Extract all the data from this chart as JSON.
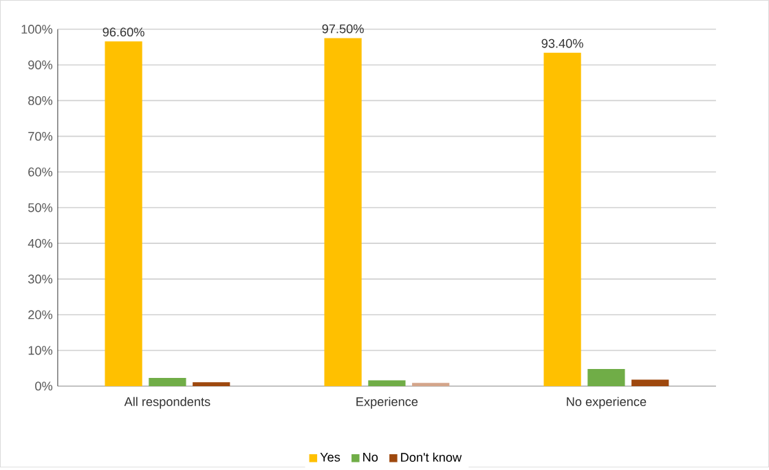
{
  "chart_data": {
    "type": "bar",
    "categories": [
      "All respondents",
      "Experience",
      "No experience"
    ],
    "series": [
      {
        "name": "Yes",
        "color": "#ffc000",
        "values": [
          96.6,
          97.5,
          93.4
        ],
        "value_labels": [
          "96.60%",
          "97.50%",
          "93.40%"
        ]
      },
      {
        "name": "No",
        "color": "#70ad47",
        "values": [
          2.3,
          1.6,
          4.8
        ]
      },
      {
        "name": "Don't know",
        "color": "#9e480e",
        "colors": [
          "#9e480e",
          "#d4a58a",
          "#9e480e"
        ],
        "values": [
          1.1,
          0.9,
          1.8
        ]
      }
    ],
    "ylim": [
      0,
      100
    ],
    "yticks": [
      {
        "value": 0,
        "label": "0%"
      },
      {
        "value": 10,
        "label": "10%"
      },
      {
        "value": 20,
        "label": "20%"
      },
      {
        "value": 30,
        "label": "30%"
      },
      {
        "value": 40,
        "label": "40%"
      },
      {
        "value": 50,
        "label": "50%"
      },
      {
        "value": 60,
        "label": "60%"
      },
      {
        "value": 70,
        "label": "70%"
      },
      {
        "value": 80,
        "label": "80%"
      },
      {
        "value": 90,
        "label": "90%"
      },
      {
        "value": 100,
        "label": "100%"
      }
    ],
    "grid": "y",
    "legend": "bottom"
  }
}
